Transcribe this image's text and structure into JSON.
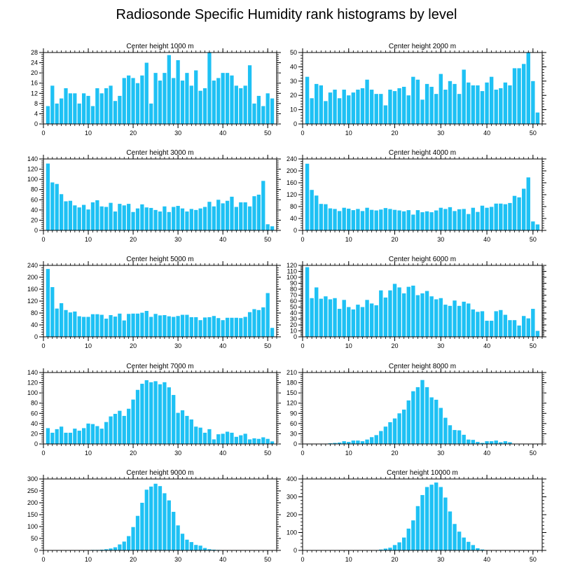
{
  "title": "Radiosonde Specific Humidity rank histograms by level",
  "colors": {
    "bar": "#1ec1f4",
    "axis": "#000000"
  },
  "chart_data": [
    {
      "type": "bar",
      "title": "Center height 1000 m",
      "xlim": [
        0,
        52
      ],
      "ylim": [
        0,
        28
      ],
      "xticks": [
        0,
        10,
        20,
        30,
        40,
        50
      ],
      "yticks": [
        0,
        4,
        8,
        12,
        16,
        20,
        24,
        28
      ],
      "values": [
        7,
        15,
        8,
        10,
        14,
        12,
        12,
        8,
        12,
        11,
        7,
        14,
        12,
        14,
        15,
        9,
        11,
        18,
        19,
        18,
        16,
        19,
        24,
        8,
        20,
        17,
        20,
        27,
        18,
        25,
        17,
        20,
        15,
        21,
        13,
        14,
        28,
        17,
        18,
        20,
        20,
        19,
        15,
        14,
        15,
        23,
        8,
        11,
        7,
        12,
        10
      ]
    },
    {
      "type": "bar",
      "title": "Center height 2000 m",
      "xlim": [
        0,
        52
      ],
      "ylim": [
        0,
        50
      ],
      "xticks": [
        0,
        10,
        20,
        30,
        40,
        50
      ],
      "yticks": [
        0,
        10,
        20,
        30,
        40,
        50
      ],
      "values": [
        33,
        18,
        28,
        27,
        16,
        22,
        24,
        18,
        24,
        20,
        22,
        24,
        25,
        31,
        24,
        21,
        21,
        13,
        24,
        23,
        25,
        26,
        20,
        33,
        31,
        17,
        28,
        26,
        21,
        35,
        24,
        30,
        28,
        21,
        38,
        29,
        27,
        27,
        23,
        29,
        33,
        24,
        25,
        29,
        27,
        39,
        39,
        42,
        50,
        30,
        8
      ]
    },
    {
      "type": "bar",
      "title": "Center height 3000 m",
      "xlim": [
        0,
        52
      ],
      "ylim": [
        0,
        140
      ],
      "xticks": [
        0,
        10,
        20,
        30,
        40,
        50
      ],
      "yticks": [
        0,
        20,
        40,
        60,
        80,
        100,
        120,
        140
      ],
      "values": [
        131,
        94,
        91,
        71,
        57,
        58,
        49,
        45,
        50,
        41,
        55,
        59,
        47,
        46,
        54,
        37,
        52,
        49,
        52,
        36,
        43,
        51,
        45,
        44,
        40,
        37,
        47,
        36,
        46,
        48,
        43,
        37,
        42,
        40,
        43,
        46,
        56,
        47,
        60,
        53,
        58,
        66,
        46,
        55,
        55,
        47,
        67,
        70,
        97,
        12,
        8
      ]
    },
    {
      "type": "bar",
      "title": "Center height 4000 m",
      "xlim": [
        0,
        52
      ],
      "ylim": [
        0,
        240
      ],
      "xticks": [
        0,
        10,
        20,
        30,
        40,
        50
      ],
      "yticks": [
        0,
        40,
        80,
        120,
        160,
        200,
        240
      ],
      "values": [
        224,
        136,
        117,
        89,
        88,
        74,
        72,
        65,
        76,
        73,
        68,
        72,
        65,
        76,
        69,
        67,
        70,
        75,
        72,
        69,
        67,
        64,
        68,
        53,
        68,
        61,
        64,
        61,
        67,
        76,
        72,
        78,
        65,
        71,
        72,
        55,
        76,
        62,
        83,
        76,
        79,
        90,
        90,
        88,
        92,
        116,
        111,
        140,
        178,
        30,
        20
      ]
    },
    {
      "type": "bar",
      "title": "Center height 5000 m",
      "xlim": [
        0,
        52
      ],
      "ylim": [
        0,
        240
      ],
      "xticks": [
        0,
        10,
        20,
        30,
        40,
        50
      ],
      "yticks": [
        0,
        40,
        80,
        120,
        160,
        200,
        240
      ],
      "values": [
        228,
        167,
        95,
        113,
        90,
        82,
        85,
        69,
        67,
        67,
        76,
        76,
        74,
        61,
        73,
        68,
        78,
        55,
        77,
        78,
        78,
        81,
        87,
        67,
        77,
        72,
        73,
        69,
        67,
        70,
        74,
        74,
        66,
        66,
        56,
        65,
        66,
        70,
        63,
        56,
        64,
        64,
        64,
        63,
        67,
        83,
        93,
        90,
        99,
        147,
        30
      ]
    },
    {
      "type": "bar",
      "title": "Center height 6000 m",
      "xlim": [
        0,
        52
      ],
      "ylim": [
        0,
        120
      ],
      "xticks": [
        0,
        10,
        20,
        30,
        40,
        50
      ],
      "yticks": [
        0,
        10,
        20,
        30,
        40,
        50,
        60,
        70,
        80,
        90,
        100,
        110,
        120
      ],
      "values": [
        117,
        65,
        83,
        64,
        68,
        63,
        65,
        47,
        62,
        50,
        46,
        54,
        50,
        62,
        56,
        53,
        78,
        66,
        78,
        89,
        83,
        73,
        84,
        86,
        70,
        73,
        77,
        68,
        63,
        65,
        54,
        52,
        61,
        52,
        59,
        56,
        46,
        42,
        43,
        27,
        27,
        43,
        45,
        37,
        28,
        28,
        19,
        35,
        31,
        47,
        10
      ]
    },
    {
      "type": "bar",
      "title": "Center height 7000 m",
      "xlim": [
        0,
        52
      ],
      "ylim": [
        0,
        140
      ],
      "xticks": [
        0,
        10,
        20,
        30,
        40,
        50
      ],
      "yticks": [
        0,
        20,
        40,
        60,
        80,
        100,
        120,
        140
      ],
      "values": [
        31,
        22,
        29,
        34,
        22,
        22,
        30,
        26,
        31,
        40,
        39,
        35,
        30,
        43,
        54,
        59,
        65,
        55,
        69,
        87,
        106,
        118,
        125,
        121,
        123,
        117,
        121,
        111,
        96,
        61,
        66,
        55,
        48,
        34,
        32,
        22,
        29,
        9,
        19,
        20,
        24,
        22,
        14,
        17,
        20,
        9,
        11,
        10,
        13,
        10,
        5
      ]
    },
    {
      "type": "bar",
      "title": "Center height 8000 m",
      "xlim": [
        0,
        52
      ],
      "ylim": [
        0,
        210
      ],
      "xticks": [
        0,
        10,
        20,
        30,
        40,
        50
      ],
      "yticks": [
        0,
        30,
        60,
        90,
        120,
        150,
        180,
        210
      ],
      "values": [
        1,
        1,
        1,
        1,
        1,
        2,
        3,
        4,
        8,
        6,
        10,
        10,
        8,
        13,
        20,
        26,
        38,
        51,
        64,
        75,
        90,
        101,
        128,
        155,
        167,
        188,
        167,
        137,
        130,
        106,
        77,
        55,
        41,
        40,
        27,
        13,
        12,
        6,
        3,
        8,
        8,
        10,
        5,
        8,
        5,
        1,
        1,
        1,
        1,
        1,
        1
      ]
    },
    {
      "type": "bar",
      "title": "Center height 9000 m",
      "xlim": [
        0,
        52
      ],
      "ylim": [
        0,
        300
      ],
      "xticks": [
        0,
        10,
        20,
        30,
        40,
        50
      ],
      "yticks": [
        0,
        50,
        100,
        150,
        200,
        250,
        300
      ],
      "values": [
        0,
        0,
        0,
        0,
        0,
        0,
        0,
        1,
        1,
        1,
        2,
        2,
        3,
        5,
        8,
        13,
        25,
        37,
        60,
        98,
        145,
        200,
        255,
        268,
        280,
        270,
        240,
        210,
        162,
        105,
        70,
        45,
        35,
        23,
        20,
        10,
        5,
        3,
        2,
        1,
        1,
        1,
        0,
        0,
        0,
        0,
        0,
        0,
        0,
        0,
        0
      ]
    },
    {
      "type": "bar",
      "title": "Center height 10000 m",
      "xlim": [
        0,
        52
      ],
      "ylim": [
        0,
        400
      ],
      "xticks": [
        0,
        10,
        20,
        30,
        40,
        50
      ],
      "yticks": [
        0,
        100,
        200,
        300,
        400
      ],
      "values": [
        0,
        0,
        0,
        0,
        0,
        0,
        0,
        0,
        0,
        0,
        0,
        0,
        0,
        0,
        1,
        2,
        5,
        10,
        15,
        30,
        45,
        72,
        122,
        168,
        248,
        310,
        355,
        368,
        380,
        355,
        296,
        218,
        148,
        105,
        72,
        48,
        30,
        12,
        5,
        2,
        1,
        1,
        0,
        0,
        0,
        0,
        0,
        0,
        0,
        0,
        0
      ]
    }
  ]
}
